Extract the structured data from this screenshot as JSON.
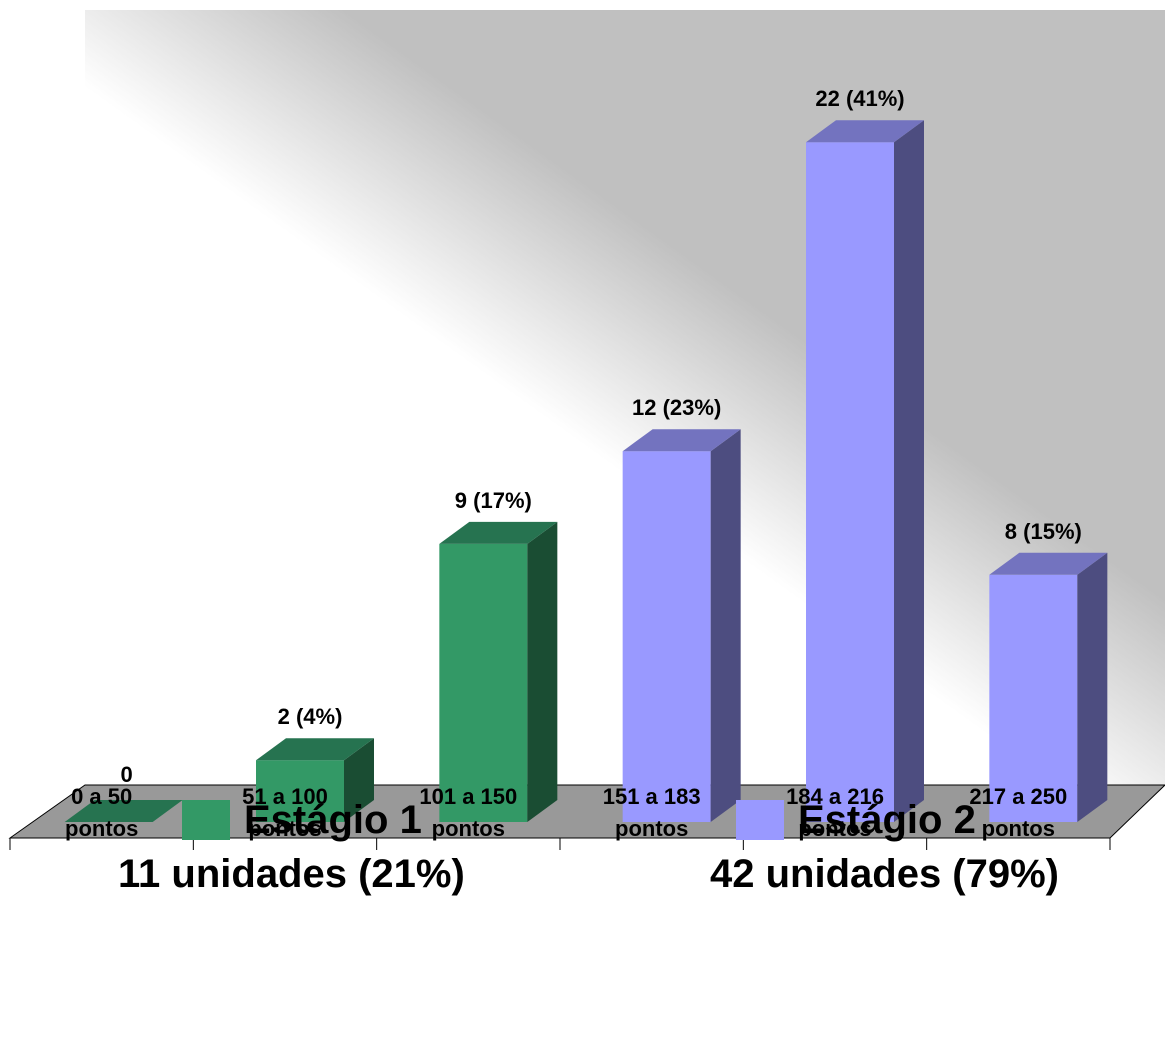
{
  "chart_data": {
    "type": "bar",
    "categories": [
      [
        "0 a 50",
        "pontos"
      ],
      [
        "51 a 100",
        "pontos"
      ],
      [
        "101 a 150",
        "pontos"
      ],
      [
        "151 a 183",
        "pontos"
      ],
      [
        "184 a 216",
        "pontos"
      ],
      [
        "217 a 250",
        "pontos"
      ]
    ],
    "values": [
      0,
      2,
      9,
      12,
      22,
      8
    ],
    "data_labels": [
      "0",
      "2 (4%)",
      "9 (17%)",
      "12 (23%)",
      "22 (41%)",
      "8 (15%)"
    ],
    "groups": [
      0,
      0,
      0,
      1,
      1,
      1
    ],
    "grid": false,
    "style": "3d-column",
    "colors": {
      "group1": {
        "front": "#339966",
        "top": "#267350",
        "side": "#1a4d33"
      },
      "group2": {
        "front": "#9999ff",
        "top": "#7373bf",
        "side": "#4d4d80"
      },
      "floor": "#999999",
      "wall": "#c0c0c0"
    }
  },
  "legend": {
    "items": [
      {
        "title": "Estágio 1",
        "subtitle": "11 unidades (21%)",
        "color": "#339966"
      },
      {
        "title": "Estágio 2",
        "subtitle": "42 unidades (79%)",
        "color": "#9999ff"
      }
    ]
  }
}
